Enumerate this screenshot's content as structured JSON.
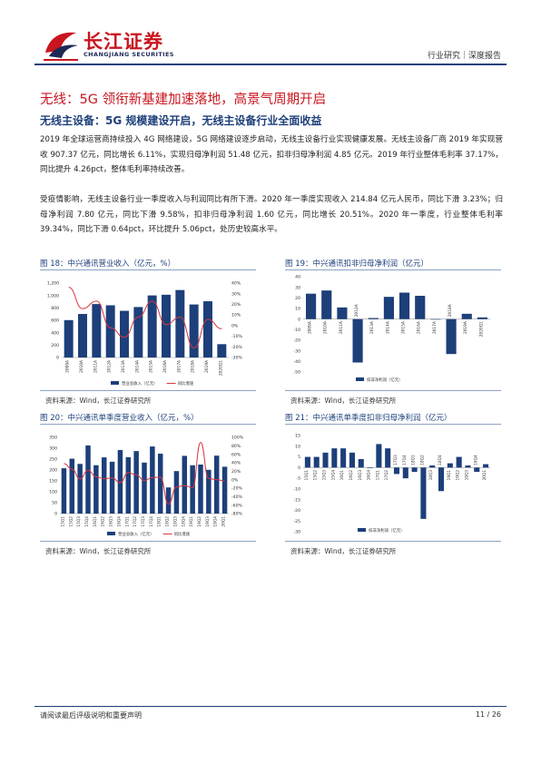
{
  "header": {
    "brand_cn": "长江证券",
    "brand_en": "CHANGJIANG SECURITIES",
    "right": "行业研究｜深度报告"
  },
  "section_title": "无线：5G 领衔新基建加速落地，高景气周期开启",
  "subsection_title": "无线主设备：5G 规模建设开启，无线主设备行业全面收益",
  "paragraphs": [
    "2019 年全球运营商持续投入 4G 网络建设，5G 网络建设逐步启动，无线主设备行业实现健康发展。无线主设备厂商 2019 年实现营收 907.37 亿元，同比增长 6.11%，实现归母净利润 51.48 亿元，扣非归母净利润 4.85 亿元。2019 年行业整体毛利率 37.17%，同比提升 4.26pct，整体毛利率持续改善。",
    "受疫情影响，无线主设备行业一季度收入与利润同比有所下滑。2020 年一季度实现收入 214.84 亿元人民币，同比下滑 3.23%；归母净利润 7.80 亿元，同比下滑 9.58%，扣非归母净利润 1.60 亿元，同比增长 20.51%。2020 年一季度，行业整体毛利率 39.34%，同比下滑 0.64pct，环比提升 5.06pct，处历史较高水平。"
  ],
  "figures": [
    {
      "title": "图 18：中兴通讯营业收入（亿元，%）",
      "source": "资料来源：Wind，长江证券研究所"
    },
    {
      "title": "图 19：中兴通讯扣非归母净利润（亿元）",
      "source": "资料来源：Wind，长江证券研究所"
    },
    {
      "title": "图 20：中兴通讯单季度营业收入（亿元，%）",
      "source": "资料来源：Wind，长江证券研究所"
    },
    {
      "title": "图 21：中兴通讯单季度扣非归母净利润（亿元）",
      "source": "资料来源：Wind，长江证券研究所"
    }
  ],
  "footer": {
    "left": "请阅读最后评级说明和重要声明",
    "right": "11 / 26"
  },
  "colors": {
    "bar": "#1d3f7a",
    "line": "#d9363e",
    "accent": "#c9151e"
  },
  "chart_data": [
    {
      "type": "bar",
      "categories": [
        "2009A",
        "2010A",
        "2011A",
        "2012A",
        "2013A",
        "2014A",
        "2015A",
        "2016A",
        "2017A",
        "2018A",
        "2019A",
        "2020Q1"
      ],
      "series": [
        {
          "name": "营业总收入（亿元）",
          "values": [
            603,
            702,
            862,
            842,
            753,
            814,
            1001,
            1012,
            1088,
            855,
            907,
            215
          ]
        },
        {
          "name": "同比增速",
          "axis": "right",
          "values": [
            36,
            16,
            23,
            -2,
            -11,
            8,
            23,
            1,
            8,
            -21,
            6,
            -3
          ]
        }
      ],
      "ylim": [
        0,
        1200
      ],
      "yticks": [
        "0",
        "200",
        "400",
        "600",
        "800",
        "1,000",
        "1,200"
      ],
      "y2lim": [
        -30,
        40
      ],
      "y2ticks": [
        "-30%",
        "-20%",
        "-10%",
        "0%",
        "10%",
        "20%",
        "30%",
        "40%"
      ],
      "legend_position": "bottom"
    },
    {
      "type": "bar",
      "categories": [
        "2009A",
        "2010A",
        "2011A",
        "2012A",
        "2013A",
        "2014A",
        "2015A",
        "2016A",
        "2017A",
        "2018A",
        "2019A",
        "2020Q1"
      ],
      "series": [
        {
          "name": "扣非净利润（亿元）",
          "values": [
            24,
            27,
            11,
            -41,
            1,
            21,
            25,
            22,
            0,
            -33,
            5,
            1.6
          ]
        }
      ],
      "ylim": [
        -50,
        40
      ],
      "yticks": [
        "-50",
        "-40",
        "-30",
        "-20",
        "-10",
        "0",
        "10",
        "20",
        "30",
        "40"
      ],
      "legend_position": "bottom"
    },
    {
      "type": "bar",
      "categories": [
        "15Q1",
        "15Q2",
        "15Q3",
        "15Q4",
        "16Q1",
        "16Q2",
        "16Q3",
        "16Q4",
        "17Q1",
        "17Q2",
        "17Q3",
        "17Q4",
        "18Q1",
        "18Q2",
        "18Q3",
        "18Q4",
        "19Q1",
        "19Q2",
        "19Q3",
        "19Q4",
        "20Q1"
      ],
      "series": [
        {
          "name": "营业总收入（亿元）",
          "values": [
            208,
            252,
            228,
            313,
            222,
            258,
            238,
            292,
            259,
            287,
            234,
            308,
            275,
            120,
            195,
            265,
            222,
            225,
            201,
            266,
            215
          ]
        },
        {
          "name": "同比增速",
          "axis": "right",
          "values": [
            38,
            25,
            2,
            22,
            7,
            2,
            4,
            -7,
            17,
            11,
            -2,
            5,
            6,
            -58,
            -17,
            -14,
            -19,
            88,
            3,
            0,
            -3
          ]
        }
      ],
      "ylim": [
        0,
        350
      ],
      "yticks": [
        "0",
        "50",
        "100",
        "150",
        "200",
        "250",
        "300",
        "350"
      ],
      "y2lim": [
        -80,
        100
      ],
      "y2ticks": [
        "-80%",
        "-60%",
        "-40%",
        "-20%",
        "0%",
        "20%",
        "40%",
        "60%",
        "80%",
        "100%"
      ],
      "legend_position": "bottom"
    },
    {
      "type": "bar",
      "categories": [
        "15Q1",
        "15Q2",
        "15Q3",
        "15Q4",
        "16Q1",
        "16Q2",
        "16Q3",
        "16Q4",
        "17Q1",
        "17Q2",
        "17Q3",
        "17Q4",
        "18Q1",
        "18Q2",
        "18Q3",
        "18Q4",
        "19Q1",
        "19Q2",
        "19Q3",
        "19Q4",
        "20Q1"
      ],
      "series": [
        {
          "name": "扣非净利润（亿元）",
          "values": [
            5,
            5,
            7,
            9,
            9,
            7,
            4,
            0,
            11,
            9,
            -3,
            -5,
            -2,
            -24,
            1,
            -11,
            2,
            5,
            1,
            -2,
            1.6
          ]
        }
      ],
      "ylim": [
        -30,
        15
      ],
      "yticks": [
        "-30",
        "-25",
        "-20",
        "-15",
        "-10",
        "-5",
        "0",
        "5",
        "10",
        "15"
      ],
      "legend_position": "bottom"
    }
  ]
}
